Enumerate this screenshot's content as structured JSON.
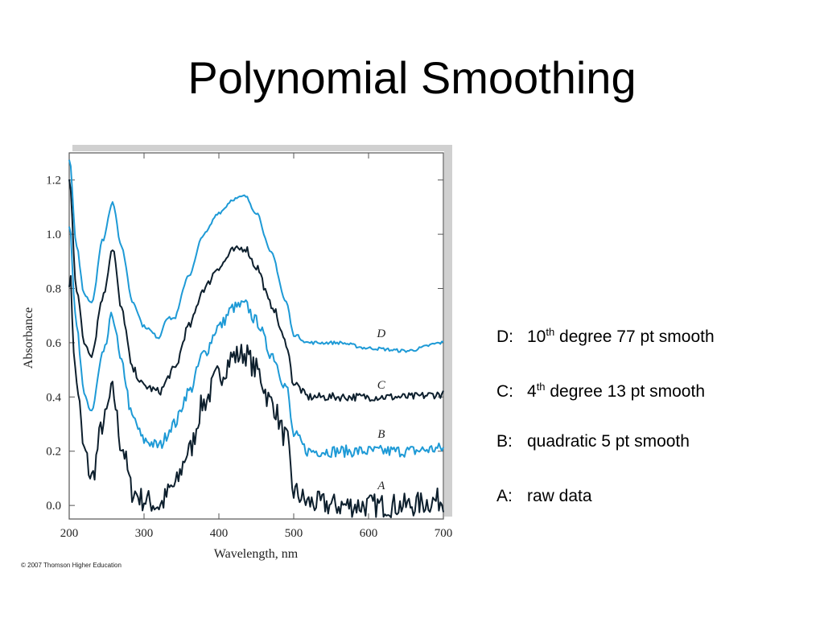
{
  "slide": {
    "title": "Polynomial Smoothing"
  },
  "copyright": "© 2007 Thomson Higher Education",
  "legend": {
    "items": [
      {
        "key": "D:",
        "num": "10",
        "sup": "th",
        "rest": " degree 77 pt smooth"
      },
      {
        "key": "C:",
        "num": "4",
        "sup": "th",
        "rest": " degree 13 pt smooth"
      },
      {
        "key": "B:",
        "num": "",
        "sup": "",
        "rest": "quadratic 5 pt smooth"
      },
      {
        "key": "A:",
        "num": "",
        "sup": "",
        "rest": "raw data"
      }
    ]
  },
  "chart_data": {
    "type": "line",
    "xlabel": "Wavelength, nm",
    "ylabel": "Absorbance",
    "xlim": [
      200,
      700
    ],
    "ylim": [
      -0.05,
      1.3
    ],
    "xticks": [
      200,
      300,
      400,
      500,
      600,
      700
    ],
    "yticks": [
      "0.0",
      "0.2",
      "0.4",
      "0.6",
      "0.8",
      "1.0",
      "1.2"
    ],
    "grid": false,
    "colors": {
      "black": "#0d1f2d",
      "blue": "#1e9ad6",
      "frame": "#555555",
      "shadow": "#cfcfcf"
    },
    "series": [
      {
        "name": "A",
        "color": "#0d1f2d",
        "noise": 0.045,
        "x": [
          200,
          210,
          220,
          230,
          245,
          258,
          270,
          285,
          300,
          320,
          340,
          360,
          380,
          400,
          420,
          435,
          450,
          470,
          490,
          500,
          520,
          560,
          600,
          650,
          700
        ],
        "y": [
          0.85,
          0.45,
          0.2,
          0.1,
          0.3,
          0.42,
          0.22,
          0.05,
          0.02,
          0.0,
          0.07,
          0.2,
          0.38,
          0.48,
          0.55,
          0.56,
          0.5,
          0.38,
          0.25,
          0.05,
          0.01,
          0.0,
          0.0,
          0.0,
          0.02
        ]
      },
      {
        "name": "B",
        "color": "#1e9ad6",
        "noise": 0.022,
        "x": [
          200,
          210,
          220,
          230,
          245,
          258,
          270,
          285,
          300,
          320,
          340,
          360,
          380,
          400,
          420,
          435,
          450,
          470,
          490,
          500,
          520,
          560,
          600,
          650,
          700
        ],
        "y": [
          1.05,
          0.65,
          0.4,
          0.35,
          0.55,
          0.7,
          0.52,
          0.32,
          0.24,
          0.22,
          0.3,
          0.42,
          0.56,
          0.66,
          0.73,
          0.74,
          0.68,
          0.56,
          0.44,
          0.26,
          0.2,
          0.2,
          0.2,
          0.2,
          0.21
        ]
      },
      {
        "name": "C",
        "color": "#0d1f2d",
        "noise": 0.015,
        "x": [
          200,
          210,
          220,
          230,
          245,
          258,
          270,
          285,
          300,
          320,
          340,
          360,
          380,
          400,
          420,
          435,
          450,
          470,
          490,
          500,
          520,
          560,
          600,
          650,
          700
        ],
        "y": [
          1.2,
          0.8,
          0.6,
          0.56,
          0.77,
          0.95,
          0.72,
          0.5,
          0.44,
          0.42,
          0.5,
          0.66,
          0.8,
          0.88,
          0.94,
          0.95,
          0.88,
          0.74,
          0.6,
          0.45,
          0.4,
          0.4,
          0.4,
          0.4,
          0.41
        ]
      },
      {
        "name": "D",
        "color": "#1e9ad6",
        "noise": 0.006,
        "x": [
          200,
          210,
          220,
          230,
          245,
          258,
          270,
          285,
          300,
          320,
          330,
          340,
          360,
          380,
          400,
          420,
          435,
          450,
          470,
          490,
          500,
          520,
          560,
          600,
          650,
          700
        ],
        "y": [
          1.28,
          0.95,
          0.78,
          0.75,
          0.98,
          1.12,
          0.95,
          0.75,
          0.66,
          0.62,
          0.69,
          0.69,
          0.85,
          1.0,
          1.08,
          1.13,
          1.14,
          1.08,
          0.93,
          0.75,
          0.63,
          0.6,
          0.6,
          0.58,
          0.57,
          0.6
        ]
      }
    ],
    "labels": [
      {
        "text": "D",
        "x": 617,
        "y": 0.62
      },
      {
        "text": "C",
        "x": 617,
        "y": 0.43
      },
      {
        "text": "B",
        "x": 617,
        "y": 0.25
      },
      {
        "text": "A",
        "x": 617,
        "y": 0.06
      }
    ]
  }
}
